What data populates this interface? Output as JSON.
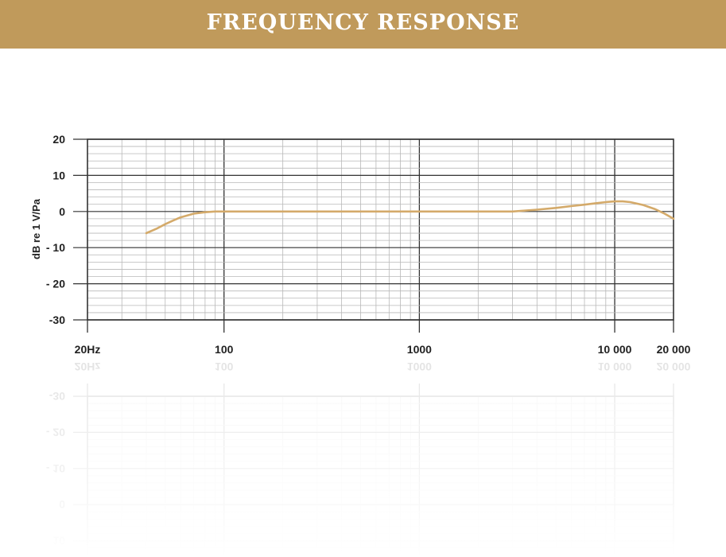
{
  "header": {
    "title": "FREQUENCY RESPONSE"
  },
  "colors": {
    "banner": "#c09a5b",
    "curve": "#d4aa6a",
    "grid_major": "#333333",
    "grid_minor": "#b8b8b8"
  },
  "chart_data": {
    "type": "line",
    "title": "",
    "xlabel": "",
    "ylabel": "dB re 1 V/Pa",
    "x_scale": "log",
    "xlim": [
      20,
      20000
    ],
    "ylim": [
      -30,
      20
    ],
    "y_ticks": [
      20,
      10,
      0,
      -10,
      -20,
      -30
    ],
    "y_tick_labels": [
      "20",
      "10",
      "0",
      "- 10",
      "- 20",
      "-30"
    ],
    "x_ticks": [
      20,
      100,
      1000,
      10000,
      20000
    ],
    "x_tick_labels": [
      "20Hz",
      "100",
      "1000",
      "10 000",
      "20 000"
    ],
    "grid": true,
    "reflection": true,
    "series": [
      {
        "x": [
          40,
          45,
          50,
          55,
          60,
          70,
          80,
          90,
          100,
          200,
          500,
          1000,
          2000,
          3000,
          4000,
          5000,
          6000,
          7000,
          8000,
          9000,
          10000,
          11000,
          12000,
          14000,
          16000,
          18000,
          20000
        ],
        "values": [
          -6,
          -4.8,
          -3.5,
          -2.5,
          -1.6,
          -0.6,
          -0.2,
          0,
          0,
          0,
          0,
          0,
          0,
          0,
          0.5,
          1.0,
          1.5,
          1.9,
          2.3,
          2.6,
          2.8,
          2.8,
          2.6,
          1.8,
          0.7,
          -0.6,
          -2
        ]
      }
    ]
  }
}
